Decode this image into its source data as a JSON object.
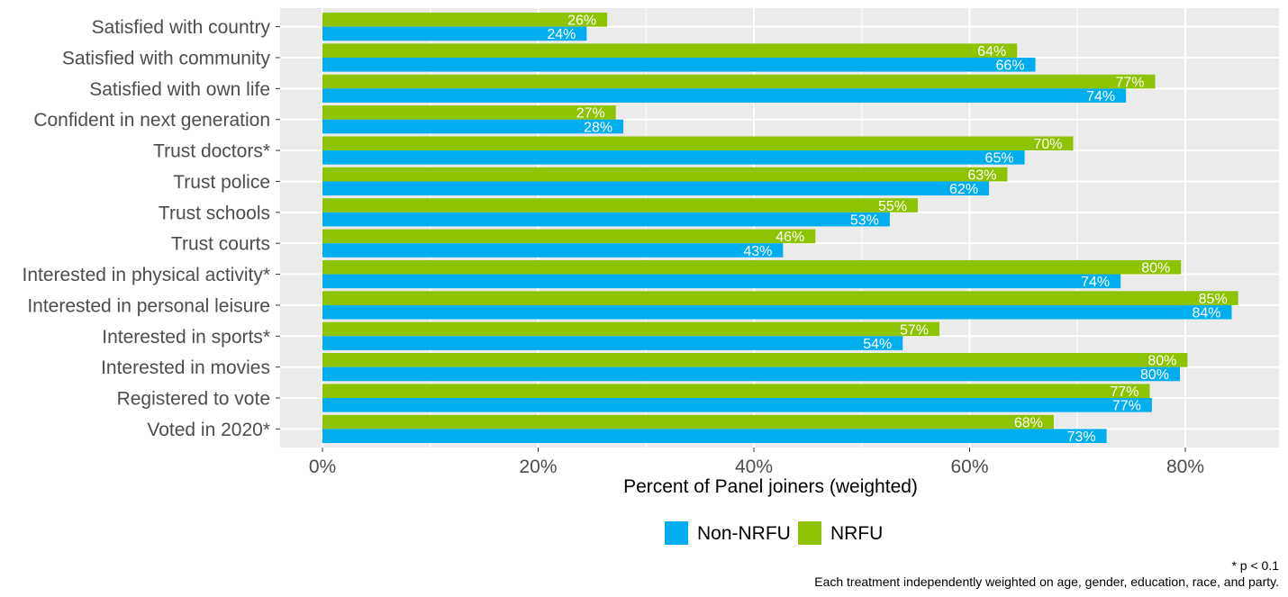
{
  "chart_data": {
    "type": "bar",
    "orientation": "horizontal",
    "categories": [
      "Satisfied with country",
      "Satisfied with community",
      "Satisfied with own life",
      "Confident in next generation",
      "Trust doctors*",
      "Trust police",
      "Trust schools",
      "Trust courts",
      "Interested in physical activity*",
      "Interested in personal leisure",
      "Interested in sports*",
      "Interested in movies",
      "Registered to vote",
      "Voted in 2020*"
    ],
    "series": [
      {
        "name": "NRFU",
        "color": "#8dc300",
        "values": [
          26.4,
          64.4,
          77.2,
          27.2,
          69.6,
          63.5,
          55.2,
          45.7,
          79.6,
          84.9,
          57.2,
          80.2,
          76.7,
          67.8
        ],
        "labels": [
          "26%",
          "64%",
          "77%",
          "27%",
          "70%",
          "63%",
          "55%",
          "46%",
          "80%",
          "85%",
          "57%",
          "80%",
          "77%",
          "68%"
        ]
      },
      {
        "name": "Non-NRFU",
        "color": "#00aeef",
        "values": [
          24.5,
          66.1,
          74.5,
          27.9,
          65.1,
          61.8,
          52.6,
          42.7,
          74.0,
          84.3,
          53.8,
          79.5,
          76.9,
          72.7
        ],
        "labels": [
          "24%",
          "66%",
          "74%",
          "28%",
          "65%",
          "62%",
          "53%",
          "43%",
          "74%",
          "84%",
          "54%",
          "80%",
          "77%",
          "73%"
        ]
      }
    ],
    "xlabel": "Percent of Panel joiners (weighted)",
    "ylabel": "",
    "xlim": [
      0,
      89
    ],
    "xticks": [
      0,
      20,
      40,
      60,
      80
    ],
    "xtick_labels": [
      "0%",
      "20%",
      "40%",
      "60%",
      "80%"
    ],
    "legend": {
      "position": "bottom",
      "entries": [
        {
          "label": "Non-NRFU",
          "color": "#00aeef"
        },
        {
          "label": "NRFU",
          "color": "#8dc300"
        }
      ]
    },
    "grid": true,
    "panel_background": "#ebebeb",
    "caption_lines": [
      "* p < 0.1",
      "Each treatment independently weighted on age, gender, education, race, and party."
    ]
  }
}
